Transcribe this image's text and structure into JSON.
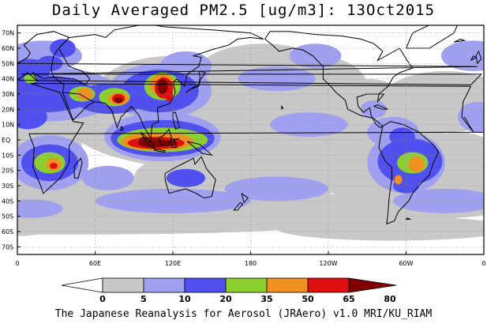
{
  "header": {
    "title": "Daily Averaged PM2.5 [ug/m3]: 13Oct2015"
  },
  "footer": {
    "text": "The Japanese Reanalysis for Aerosol (JRAero) v1.0 MRI/KU_RIAM"
  },
  "map": {
    "projection": "equirectangular",
    "lon_range": [
      0,
      360
    ],
    "lat_range": [
      -75,
      75
    ],
    "lat_ticks": [
      {
        "lat": 70,
        "label": "70N"
      },
      {
        "lat": 60,
        "label": "60N"
      },
      {
        "lat": 50,
        "label": "50N"
      },
      {
        "lat": 40,
        "label": "40N"
      },
      {
        "lat": 30,
        "label": "30N"
      },
      {
        "lat": 20,
        "label": "20N"
      },
      {
        "lat": 10,
        "label": "10N"
      },
      {
        "lat": 0,
        "label": "EQ"
      },
      {
        "lat": -10,
        "label": "10S"
      },
      {
        "lat": -20,
        "label": "20S"
      },
      {
        "lat": -30,
        "label": "30S"
      },
      {
        "lat": -40,
        "label": "40S"
      },
      {
        "lat": -50,
        "label": "50S"
      },
      {
        "lat": -60,
        "label": "60S"
      },
      {
        "lat": -70,
        "label": "70S"
      }
    ],
    "lon_ticks": [
      {
        "lon": 0,
        "label": "0"
      },
      {
        "lon": 60,
        "label": "60E"
      },
      {
        "lon": 120,
        "label": "120E"
      },
      {
        "lon": 180,
        "label": "180"
      },
      {
        "lon": 240,
        "label": "120W"
      },
      {
        "lon": 300,
        "label": "60W"
      },
      {
        "lon": 360,
        "label": "0"
      }
    ],
    "grid": "dotted"
  },
  "colorbar": {
    "bins": [
      {
        "color": "#ffffff"
      },
      {
        "color": "#c8c8c8"
      },
      {
        "color": "#a0a0f0"
      },
      {
        "color": "#5050f0"
      },
      {
        "color": "#8cd030"
      },
      {
        "color": "#f09020"
      },
      {
        "color": "#e01010"
      },
      {
        "color": "#800000"
      }
    ],
    "labels": [
      "0",
      "5",
      "10",
      "20",
      "35",
      "50",
      "65",
      "80"
    ]
  },
  "chart_data": {
    "type": "heatmap",
    "title": "Daily Averaged PM2.5 [ug/m3]: 13Oct2015",
    "levels_ug_m3": [
      0,
      5,
      10,
      20,
      35,
      50,
      65,
      80
    ],
    "regions": [
      {
        "lon": [
          95,
          125
        ],
        "lat": [
          -6,
          4
        ],
        "level": 80
      },
      {
        "lon": [
          104,
          118
        ],
        "lat": [
          -4,
          2
        ],
        "level": 80
      },
      {
        "lon": [
          108,
          122
        ],
        "lat": [
          24,
          40
        ],
        "level": 65
      },
      {
        "lon": [
          75,
          90
        ],
        "lat": [
          22,
          30
        ],
        "level": 65
      },
      {
        "lon": [
          45,
          60
        ],
        "lat": [
          26,
          33
        ],
        "level": 50
      },
      {
        "lon": [
          25,
          35
        ],
        "lat": [
          -22,
          -12
        ],
        "level": 50
      },
      {
        "lon": [
          305,
          318
        ],
        "lat": [
          -20,
          -10
        ],
        "level": 50
      },
      {
        "lon": [
          292,
          297
        ],
        "lat": [
          -28,
          -24
        ],
        "level": 50
      },
      {
        "lon": [
          90,
          135
        ],
        "lat": [
          -12,
          10
        ],
        "level": 35
      },
      {
        "lon": [
          100,
          125
        ],
        "lat": [
          20,
          45
        ],
        "level": 35
      },
      {
        "lon": [
          40,
          95
        ],
        "lat": [
          15,
          35
        ],
        "level": 20
      },
      {
        "lon": [
          8,
          40
        ],
        "lat": [
          -25,
          -5
        ],
        "level": 20
      },
      {
        "lon": [
          290,
          320
        ],
        "lat": [
          -25,
          -5
        ],
        "level": 20
      },
      {
        "lon": [
          0,
          30
        ],
        "lat": [
          25,
          55
        ],
        "level": 10
      },
      {
        "lon": [
          180,
          240
        ],
        "lat": [
          -40,
          30
        ],
        "level": 5
      }
    ]
  }
}
